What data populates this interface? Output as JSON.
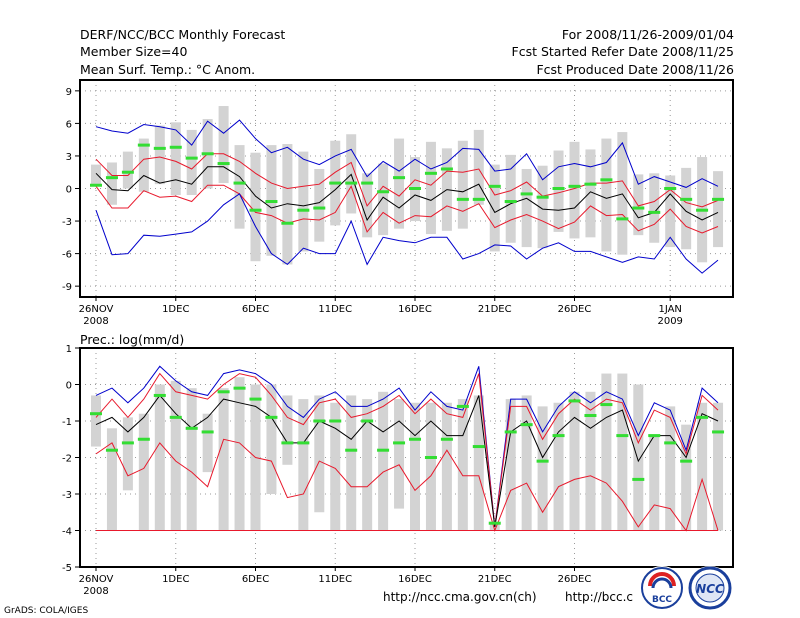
{
  "header": {
    "title": "DERF/NCC/BCC Monthly Forecast",
    "member_size": "Member Size=40",
    "variable": "Mean Surf. Temp.: °C Anom.",
    "period": "For 2008/11/26-2009/01/04",
    "started": "Fcst Started Refer Date 2008/11/25",
    "produced": "Fcst Produced Date 2008/11/26"
  },
  "footer": {
    "url1": "http://ncc.cma.gov.cn(ch)",
    "url2": "http://bcc.c",
    "grads": "GrADS: COLA/IGES",
    "logo_bcc": "BCC",
    "logo_ncc": "NCC"
  },
  "colors": {
    "bar": "#d3d3d3",
    "mean": "#000000",
    "inner": "#e8192c",
    "outer": "#0000cc",
    "median": "#33dd33",
    "grid": "#9a9a9a"
  },
  "chart_data": [
    {
      "type": "line",
      "title": "Mean Surf. Temp.: °C Anom.",
      "ylabel": "°C Anom.",
      "ylim": [
        -10,
        10
      ],
      "yticks": [
        9,
        6,
        3,
        0,
        -3,
        -6,
        -9
      ],
      "xticks": [
        {
          "day": 0,
          "label": "26NOV",
          "sub": "2008"
        },
        {
          "day": 5,
          "label": "1DEC",
          "sub": ""
        },
        {
          "day": 10,
          "label": "6DEC",
          "sub": ""
        },
        {
          "day": 15,
          "label": "11DEC",
          "sub": ""
        },
        {
          "day": 20,
          "label": "16DEC",
          "sub": ""
        },
        {
          "day": 25,
          "label": "21DEC",
          "sub": ""
        },
        {
          "day": 30,
          "label": "26DEC",
          "sub": ""
        },
        {
          "day": 36,
          "label": "1JAN",
          "sub": "2009"
        }
      ],
      "days": 40,
      "series": [
        {
          "name": "Max",
          "values": [
            5.7,
            5.3,
            5.1,
            5.9,
            5.7,
            5.4,
            4.0,
            6.2,
            5.1,
            6.3,
            4.6,
            3.3,
            3.8,
            2.7,
            2.2,
            3.0,
            3.6,
            1.1,
            2.5,
            1.6,
            2.7,
            1.8,
            2.4,
            3.7,
            3.6,
            1.6,
            1.8,
            3.2,
            0.8,
            2.0,
            2.3,
            2.0,
            2.4,
            4.2,
            0.4,
            1.1,
            0.6,
            0.1,
            0.9,
            0.2
          ]
        },
        {
          "name": "Upper",
          "values": [
            2.7,
            1.2,
            1.2,
            2.7,
            2.9,
            2.5,
            1.8,
            3.2,
            3.2,
            2.5,
            1.4,
            0.5,
            0.0,
            0.2,
            0.4,
            1.5,
            2.4,
            -1.6,
            0.2,
            -0.7,
            0.8,
            0.3,
            1.6,
            1.5,
            1.8,
            -0.6,
            -0.2,
            0.6,
            -0.7,
            -0.4,
            0.0,
            0.5,
            0.5,
            0.7,
            -1.6,
            -1.2,
            -0.1,
            -1.3,
            -1.7,
            -1.1
          ]
        },
        {
          "name": "Mean",
          "values": [
            1.4,
            -0.1,
            -0.2,
            1.2,
            0.5,
            0.8,
            0.4,
            2.0,
            2.0,
            1.1,
            -0.7,
            -1.8,
            -1.4,
            -1.6,
            -1.3,
            -0.1,
            1.3,
            -2.9,
            -0.8,
            -1.8,
            -0.6,
            -1.1,
            -0.1,
            -0.3,
            0.4,
            -2.2,
            -1.4,
            -0.9,
            -1.9,
            -2.0,
            -1.8,
            -0.3,
            -0.9,
            -0.5,
            -2.7,
            -2.2,
            -0.5,
            -2.1,
            -2.9,
            -2.2
          ]
        },
        {
          "name": "Lower",
          "values": [
            0.2,
            -1.8,
            -1.8,
            -0.2,
            -0.8,
            -0.7,
            -1.2,
            0.3,
            0.3,
            -0.5,
            -2.2,
            -2.5,
            -3.2,
            -2.8,
            -2.9,
            -2.2,
            0.2,
            -4.0,
            -2.2,
            -3.2,
            -2.5,
            -2.6,
            -1.6,
            -2.1,
            -1.4,
            -3.6,
            -2.9,
            -2.4,
            -3.0,
            -3.7,
            -3.1,
            -1.6,
            -2.5,
            -2.4,
            -3.9,
            -3.3,
            -1.9,
            -3.5,
            -4.1,
            -3.5
          ]
        },
        {
          "name": "Min",
          "values": [
            -2.0,
            -6.1,
            -6.0,
            -4.3,
            -4.4,
            -4.2,
            -4.0,
            -3.0,
            -1.5,
            -0.5,
            -3.5,
            -6.0,
            -7.0,
            -5.5,
            -6.0,
            -6.0,
            -3.0,
            -7.0,
            -4.5,
            -4.8,
            -5.0,
            -4.5,
            -4.5,
            -6.5,
            -6.0,
            -5.2,
            -5.3,
            -6.5,
            -5.5,
            -5.0,
            -5.8,
            -5.8,
            -6.3,
            -6.8,
            -6.3,
            -6.5,
            -4.5,
            -6.5,
            -7.8,
            -6.6
          ]
        },
        {
          "name": "Median",
          "values": [
            0.3,
            1.0,
            1.5,
            4.0,
            3.7,
            3.8,
            2.8,
            3.2,
            2.3,
            0.5,
            -2.0,
            -1.2,
            -3.2,
            -2.0,
            -1.8,
            0.5,
            0.5,
            0.5,
            -0.3,
            1.0,
            0.0,
            1.4,
            1.8,
            -1.0,
            -1.0,
            0.2,
            -1.2,
            -0.5,
            -0.8,
            0.0,
            0.2,
            0.4,
            0.8,
            -2.8,
            -1.8,
            -2.2,
            0.0,
            -1.0,
            -2.0,
            -1.0
          ]
        }
      ],
      "bars": {
        "high": [
          2.2,
          2.4,
          3.4,
          4.6,
          5.8,
          6.1,
          5.4,
          6.4,
          7.6,
          4.0,
          3.3,
          4.0,
          4.1,
          3.4,
          1.8,
          4.4,
          5.0,
          1.4,
          2.3,
          4.6,
          2.9,
          4.3,
          3.7,
          4.4,
          5.4,
          2.2,
          3.1,
          1.8,
          2.1,
          3.5,
          4.3,
          3.6,
          4.6,
          5.2,
          1.3,
          1.4,
          1.2,
          1.9,
          2.9,
          1.6
        ],
        "low": [
          0.2,
          -1.5,
          0.0,
          -0.3,
          0.4,
          -0.6,
          -0.6,
          0.0,
          0.5,
          -3.7,
          -6.7,
          -6.2,
          -7.0,
          -5.8,
          -4.9,
          -3.4,
          -2.3,
          -4.5,
          -4.3,
          -3.7,
          -3.0,
          -4.2,
          -3.9,
          -3.7,
          -1.5,
          -5.8,
          -5.0,
          -5.4,
          -5.5,
          -4.0,
          -4.6,
          -4.5,
          -5.8,
          -6.1,
          -4.3,
          -5.0,
          -5.4,
          -5.6,
          -6.8,
          -5.4
        ]
      }
    },
    {
      "type": "line",
      "title": "Prec.: log(mm/d)",
      "ylabel": "log(mm/d)",
      "ylim": [
        -5,
        1
      ],
      "yticks": [
        1,
        0,
        -1,
        -2,
        -3,
        -4,
        -5
      ],
      "xticks": [
        {
          "day": 0,
          "label": "26NOV",
          "sub": "2008"
        },
        {
          "day": 5,
          "label": "1DEC",
          "sub": ""
        },
        {
          "day": 10,
          "label": "6DEC",
          "sub": ""
        },
        {
          "day": 15,
          "label": "11DEC",
          "sub": ""
        },
        {
          "day": 20,
          "label": "16DEC",
          "sub": ""
        },
        {
          "day": 25,
          "label": "21DEC",
          "sub": ""
        },
        {
          "day": 30,
          "label": "26DEC",
          "sub": ""
        }
      ],
      "days": 40,
      "series": [
        {
          "name": "Max",
          "values": [
            -0.3,
            -0.1,
            -0.5,
            -0.1,
            0.5,
            0.1,
            -0.2,
            -0.3,
            0.3,
            0.4,
            0.3,
            0.0,
            -0.6,
            -0.9,
            -0.4,
            -0.2,
            -0.6,
            -0.6,
            -0.4,
            -0.1,
            -0.7,
            -0.2,
            -0.6,
            -0.7,
            0.5,
            -3.9,
            -0.4,
            -0.4,
            -1.3,
            -0.6,
            -0.2,
            -0.5,
            -0.2,
            -0.4,
            -1.4,
            -0.5,
            -0.7,
            -1.8,
            -0.1,
            -0.5
          ]
        },
        {
          "name": "Upper",
          "values": [
            -0.9,
            -0.4,
            -0.9,
            -0.4,
            0.3,
            -0.2,
            -0.3,
            -0.4,
            0.0,
            0.3,
            0.2,
            -0.3,
            -0.9,
            -1.1,
            -0.5,
            -0.4,
            -0.9,
            -0.8,
            -0.6,
            -0.3,
            -0.8,
            -0.4,
            -0.8,
            -0.9,
            0.3,
            -3.9,
            -0.6,
            -0.6,
            -1.5,
            -0.8,
            -0.4,
            -0.7,
            -0.4,
            -0.5,
            -1.6,
            -0.7,
            -0.9,
            -1.9,
            -0.3,
            -0.7
          ]
        },
        {
          "name": "Mean",
          "values": [
            -1.1,
            -0.9,
            -1.3,
            -0.9,
            -0.3,
            -0.8,
            -1.2,
            -0.9,
            -0.4,
            -0.5,
            -0.6,
            -0.9,
            -1.6,
            -1.6,
            -1.0,
            -1.2,
            -1.5,
            -1.0,
            -1.3,
            -1.0,
            -1.4,
            -1.0,
            -1.4,
            -1.4,
            -0.3,
            -3.9,
            -1.3,
            -1.0,
            -2.0,
            -1.3,
            -0.9,
            -1.2,
            -0.9,
            -0.7,
            -2.1,
            -1.4,
            -1.4,
            -2.0,
            -0.8,
            -1.0
          ]
        },
        {
          "name": "Lower",
          "values": [
            -1.9,
            -1.6,
            -2.5,
            -2.3,
            -1.6,
            -2.1,
            -2.4,
            -2.8,
            -1.5,
            -1.6,
            -2.0,
            -2.1,
            -3.1,
            -3.0,
            -2.1,
            -2.3,
            -2.8,
            -2.8,
            -2.4,
            -2.2,
            -2.9,
            -2.5,
            -1.8,
            -2.5,
            -2.5,
            -4.0,
            -2.9,
            -2.7,
            -3.5,
            -2.8,
            -2.6,
            -2.5,
            -2.7,
            -3.2,
            -3.9,
            -3.3,
            -3.4,
            -4.0,
            -2.6,
            -4.0
          ]
        },
        {
          "name": "Min",
          "values": [
            -4,
            -4,
            -4,
            -4,
            -4,
            -4,
            -4,
            -4,
            -4,
            -4,
            -4,
            -4,
            -4,
            -4,
            -4,
            -4,
            -4,
            -4,
            -4,
            -4,
            -4,
            -4,
            -4,
            -4,
            -4,
            -4,
            -4,
            -4,
            -4,
            -4,
            -4,
            -4,
            -4,
            -4,
            -4,
            -4,
            -4,
            -4,
            -4,
            -4
          ]
        },
        {
          "name": "Median",
          "values": [
            -0.8,
            -1.8,
            -1.6,
            -1.5,
            -0.3,
            -0.9,
            -1.2,
            -1.3,
            -0.2,
            -0.1,
            -0.4,
            -0.9,
            -1.6,
            -1.6,
            -1.0,
            -1.0,
            -1.8,
            -1.0,
            -1.8,
            -1.6,
            -1.5,
            -2.0,
            -1.5,
            -0.6,
            -1.7,
            -3.8,
            -1.3,
            -1.1,
            -2.1,
            -1.4,
            -0.45,
            -0.85,
            -0.55,
            -1.4,
            -2.6,
            -1.4,
            -1.6,
            -2.1,
            -0.9,
            -1.3
          ]
        }
      ],
      "bars": {
        "high": [
          -0.3,
          -1.2,
          -0.9,
          -0.8,
          0.0,
          0.1,
          -0.1,
          -0.8,
          -0.1,
          0.2,
          0.0,
          0.0,
          -0.3,
          -0.4,
          -0.3,
          -0.5,
          -0.3,
          -0.4,
          -0.2,
          -0.4,
          -0.5,
          -0.5,
          -0.5,
          -0.4,
          -0.3,
          -3.8,
          -0.4,
          -0.3,
          -0.6,
          -0.5,
          -0.2,
          -0.2,
          0.3,
          0.3,
          0.0,
          -1.4,
          -0.6,
          -1.1,
          -0.5,
          -0.5
        ],
        "low": [
          -1.7,
          -4.0,
          -2.9,
          -4.0,
          -4.0,
          -4.0,
          -4.0,
          -2.4,
          -4.0,
          -4.0,
          -4.0,
          -3.0,
          -2.2,
          -4.0,
          -3.5,
          -4.0,
          -4.0,
          -4.0,
          -4.0,
          -3.4,
          -4.0,
          -4.0,
          -4.0,
          -4.0,
          -4.0,
          -4.0,
          -4.0,
          -4.0,
          -4.0,
          -4.0,
          -4.0,
          -4.0,
          -4.0,
          -4.0,
          -4.0,
          -4.0,
          -4.0,
          -4.0,
          -4.0,
          -4.0
        ]
      }
    }
  ]
}
